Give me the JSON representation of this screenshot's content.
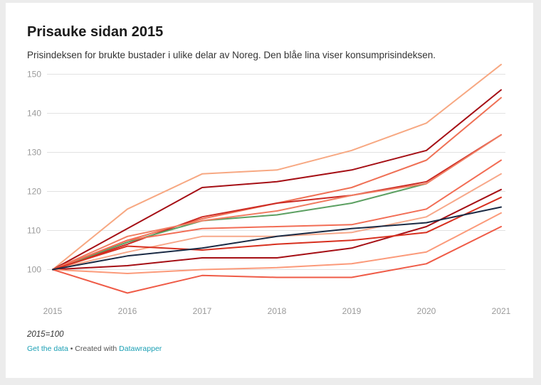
{
  "header": {
    "title": "Prisauke sidan 2015",
    "subtitle": "Prisindeksen for brukte bustader i ulike delar av Noreg. Den blåe lina viser konsumprisindeksen."
  },
  "footer": {
    "note": "2015=100",
    "get_data_label": "Get the data",
    "separator": " • Created with ",
    "datawrapper_label": "Datawrapper"
  },
  "colors": {
    "grid": "#e2e2e2",
    "tick_text": "#9a9a9a",
    "link": "#1a9fb4"
  },
  "chart_data": {
    "type": "line",
    "title": "Prisauke sidan 2015",
    "subtitle": "Prisindeksen for brukte bustader i ulike delar av Noreg. Den blåe lina viser konsumprisindeksen.",
    "xlabel": "",
    "ylabel": "",
    "x": [
      "2015",
      "2016",
      "2017",
      "2018",
      "2019",
      "2020",
      "2021"
    ],
    "xticks": [
      "2015",
      "2016",
      "2017",
      "2018",
      "2019",
      "2020",
      "2021"
    ],
    "yticks": [
      100,
      110,
      120,
      130,
      140,
      150
    ],
    "ylim": [
      93,
      153
    ],
    "grid": true,
    "series": [
      {
        "color": "#f7a882",
        "values": [
          100,
          115.5,
          124.5,
          125.5,
          130.5,
          137.5,
          152.5
        ]
      },
      {
        "color": "#a50f15",
        "values": [
          100,
          110.5,
          121,
          122.5,
          125.5,
          130.5,
          146
        ]
      },
      {
        "color": "#ef7055",
        "values": [
          100,
          107.5,
          113,
          117,
          121,
          128,
          144
        ]
      },
      {
        "color": "#cb2a23",
        "values": [
          100,
          106.5,
          113.5,
          117,
          119,
          122.5,
          134.5
        ]
      },
      {
        "color": "#5ca062",
        "values": [
          100,
          107,
          112.5,
          114,
          117,
          122,
          null
        ]
      },
      {
        "color": "#f07d62",
        "values": [
          100,
          108.5,
          112.5,
          115,
          119,
          122,
          134.5
        ]
      },
      {
        "color": "#f26d55",
        "values": [
          100,
          107.5,
          110.5,
          111,
          111.5,
          115.5,
          128
        ]
      },
      {
        "color": "#f7a88a",
        "values": [
          100,
          104.5,
          108.5,
          108.5,
          109.5,
          113.5,
          124.5
        ]
      },
      {
        "color": "#a50f15",
        "values": [
          100,
          101,
          103,
          103,
          105.5,
          111,
          120.5
        ]
      },
      {
        "color": "#d7301f",
        "values": [
          100,
          106,
          105,
          106.5,
          107.5,
          109.5,
          118.5
        ]
      },
      {
        "color": "#fb9a7a",
        "values": [
          100,
          99,
          100,
          100.5,
          101.5,
          104.5,
          114.5
        ]
      },
      {
        "color": "#ef5b47",
        "values": [
          100,
          94,
          98.5,
          98,
          98,
          101.5,
          111
        ]
      },
      {
        "color": "#1b2b45",
        "values": [
          100,
          103.5,
          105.5,
          108.5,
          110.5,
          112,
          116
        ]
      }
    ]
  }
}
